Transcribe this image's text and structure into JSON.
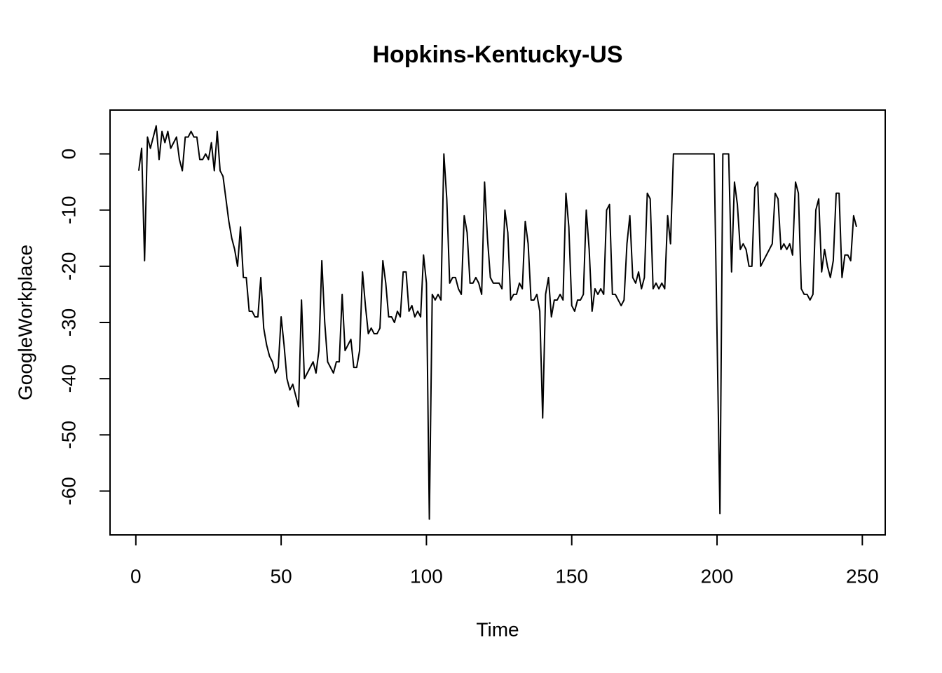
{
  "chart_data": {
    "type": "line",
    "title": "Hopkins-Kentucky-US",
    "xlabel": "Time",
    "ylabel": "GoogleWorkplace",
    "x": [
      1,
      2,
      3,
      4,
      5,
      6,
      7,
      8,
      9,
      10,
      11,
      12,
      13,
      14,
      15,
      16,
      17,
      18,
      19,
      20,
      21,
      22,
      23,
      24,
      25,
      26,
      27,
      28,
      29,
      30,
      31,
      32,
      33,
      34,
      35,
      36,
      37,
      38,
      39,
      40,
      41,
      42,
      43,
      44,
      45,
      46,
      47,
      48,
      49,
      50,
      51,
      52,
      53,
      54,
      55,
      56,
      57,
      58,
      59,
      60,
      61,
      62,
      63,
      64,
      65,
      66,
      67,
      68,
      69,
      70,
      71,
      72,
      73,
      74,
      75,
      76,
      77,
      78,
      79,
      80,
      81,
      82,
      83,
      84,
      85,
      86,
      87,
      88,
      89,
      90,
      91,
      92,
      93,
      94,
      95,
      96,
      97,
      98,
      99,
      100,
      101,
      102,
      103,
      104,
      105,
      106,
      107,
      108,
      109,
      110,
      111,
      112,
      113,
      114,
      115,
      116,
      117,
      118,
      119,
      120,
      121,
      122,
      123,
      124,
      125,
      126,
      127,
      128,
      129,
      130,
      131,
      132,
      133,
      134,
      135,
      136,
      137,
      138,
      139,
      140,
      141,
      142,
      143,
      144,
      145,
      146,
      147,
      148,
      149,
      150,
      151,
      152,
      153,
      154,
      155,
      156,
      157,
      158,
      159,
      160,
      161,
      162,
      163,
      164,
      165,
      166,
      167,
      168,
      169,
      170,
      171,
      172,
      173,
      174,
      175,
      176,
      177,
      178,
      179,
      180,
      181,
      182,
      183,
      184,
      185,
      186,
      187,
      188,
      189,
      190,
      191,
      192,
      193,
      194,
      195,
      196,
      197,
      198,
      199,
      200,
      201,
      202,
      203,
      204,
      205,
      206,
      207,
      208,
      209,
      210,
      211,
      212,
      213,
      214,
      215,
      216,
      217,
      218,
      219,
      220,
      221,
      222,
      223,
      224,
      225,
      226,
      227,
      228,
      229,
      230,
      231,
      232,
      233,
      234,
      235,
      236,
      237,
      238,
      239,
      240,
      241,
      242,
      243,
      244,
      245,
      246,
      247,
      248
    ],
    "values": [
      -3,
      1,
      -19,
      3,
      1,
      3,
      5,
      -1,
      4,
      2,
      4,
      1,
      2,
      3,
      -1,
      -3,
      3,
      3,
      4,
      3,
      3,
      -1,
      -1,
      0,
      -1,
      2,
      -3,
      4,
      -3,
      -4,
      -8,
      -12,
      -15,
      -17,
      -20,
      -13,
      -22,
      -22,
      -28,
      -28,
      -29,
      -29,
      -22,
      -31,
      -34,
      -36,
      -37,
      -39,
      -38,
      -29,
      -34,
      -40,
      -42,
      -41,
      -43,
      -45,
      -26,
      -40,
      -39,
      -38,
      -37,
      -39,
      -35,
      -19,
      -30,
      -37,
      -38,
      -39,
      -37,
      -37,
      -25,
      -35,
      -34,
      -33,
      -38,
      -38,
      -35,
      -21,
      -27,
      -32,
      -31,
      -32,
      -32,
      -31,
      -19,
      -23,
      -29,
      -29,
      -30,
      -28,
      -29,
      -21,
      -21,
      -28,
      -27,
      -29,
      -28,
      -29,
      -18,
      -23,
      -65,
      -25,
      -26,
      -25,
      -26,
      0,
      -8,
      -23,
      -22,
      -22,
      -24,
      -25,
      -11,
      -14,
      -23,
      -23,
      -22,
      -23,
      -25,
      -5,
      -15,
      -22,
      -23,
      -23,
      -23,
      -24,
      -10,
      -14,
      -26,
      -25,
      -25,
      -23,
      -24,
      -12,
      -16,
      -26,
      -26,
      -25,
      -28,
      -47,
      -25,
      -22,
      -29,
      -26,
      -26,
      -25,
      -26,
      -7,
      -13,
      -27,
      -28,
      -26,
      -26,
      -25,
      -10,
      -17,
      -28,
      -24,
      -25,
      -24,
      -25,
      -10,
      -9,
      -25,
      -25,
      -26,
      -27,
      -26,
      -16,
      -11,
      -22,
      -23,
      -21,
      -24,
      -22,
      -7,
      -8,
      -24,
      -23,
      -24,
      -23,
      -24,
      -11,
      -16,
      0,
      0,
      0,
      0,
      0,
      0,
      0,
      0,
      0,
      0,
      0,
      0,
      0,
      0,
      0,
      -32,
      -64,
      0,
      0,
      0,
      -21,
      -5,
      -9,
      -17,
      -16,
      -17,
      -20,
      -20,
      -6,
      -5,
      -20,
      -19,
      -18,
      -17,
      -16,
      -7,
      -8,
      -17,
      -16,
      -17,
      -16,
      -18,
      -5,
      -7,
      -24,
      -25,
      -25,
      -26,
      -25,
      -10,
      -8,
      -21,
      -17,
      -20,
      -22,
      -19,
      -7,
      -7,
      -22,
      -18,
      -18,
      -19,
      -11,
      -13
    ],
    "color": "#000000",
    "xlim": [
      -8.88,
      257.88
    ],
    "xticks": [
      0,
      50,
      100,
      150,
      200,
      250
    ],
    "ylim": [
      -67.8,
      7.8
    ],
    "yticks": [
      -60,
      -50,
      -40,
      -30,
      -20,
      -10,
      0
    ]
  }
}
